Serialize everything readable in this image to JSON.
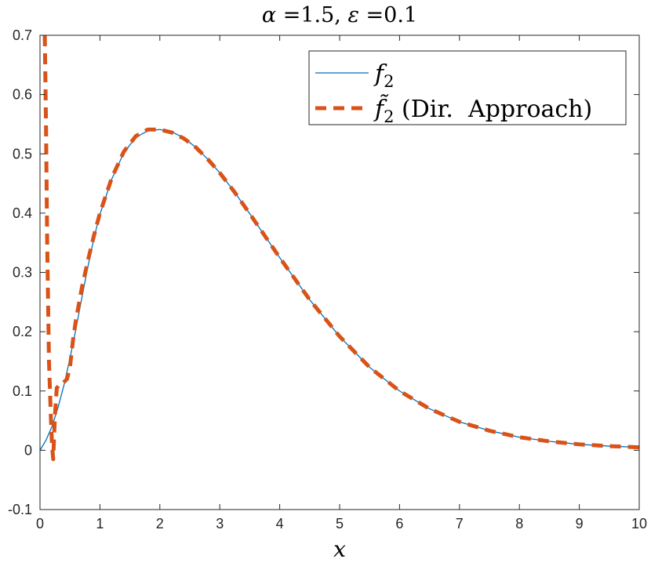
{
  "chart_data": {
    "type": "line",
    "title": "α =1.5, ε =0.1",
    "title_parts": {
      "alpha": "α",
      "alpha_val": " =1.5, ",
      "eps": "ε",
      "eps_val": " =0.1"
    },
    "xlabel": "x",
    "ylabel": "",
    "xlim": [
      0,
      10
    ],
    "ylim": [
      -0.1,
      0.7
    ],
    "xticks": [
      "0",
      "1",
      "2",
      "3",
      "4",
      "5",
      "6",
      "7",
      "8",
      "9",
      "10"
    ],
    "yticks": [
      "-0.1",
      "0",
      "0.1",
      "0.2",
      "0.3",
      "0.4",
      "0.5",
      "0.6",
      "0.7"
    ],
    "grid": false,
    "legend_position": "top-right",
    "series": [
      {
        "name": "f2",
        "legend_base": "f",
        "legend_sub": "2",
        "legend_suffix": "",
        "style": "solid",
        "color": "#0072BD",
        "x": [
          0,
          0.1,
          0.2,
          0.3,
          0.4,
          0.5,
          0.6,
          0.7,
          0.8,
          0.9,
          1.0,
          1.2,
          1.4,
          1.6,
          1.8,
          2.0,
          2.2,
          2.4,
          2.6,
          2.8,
          3.0,
          3.25,
          3.5,
          3.75,
          4.0,
          4.5,
          5.0,
          5.5,
          6.0,
          6.5,
          7.0,
          7.5,
          8.0,
          8.5,
          9.0,
          9.5,
          10.0
        ],
        "y": [
          0,
          0.017,
          0.04,
          0.072,
          0.11,
          0.155,
          0.205,
          0.258,
          0.31,
          0.358,
          0.398,
          0.458,
          0.502,
          0.528,
          0.539,
          0.541,
          0.537,
          0.527,
          0.511,
          0.491,
          0.468,
          0.435,
          0.399,
          0.362,
          0.325,
          0.254,
          0.192,
          0.14,
          0.1,
          0.07,
          0.048,
          0.033,
          0.022,
          0.015,
          0.01,
          0.007,
          0.005
        ]
      },
      {
        "name": "f2 tilde (Dir. Approach)",
        "legend_base": "f̃",
        "legend_sub": "2",
        "legend_suffix": " (Dir.  Approach)",
        "style": "dashed",
        "color": "#D95319",
        "x": [
          0.08,
          0.1,
          0.12,
          0.15,
          0.18,
          0.2,
          0.22,
          0.25,
          0.28,
          0.32,
          0.36,
          0.4,
          0.45,
          0.5,
          0.55,
          0.6,
          0.7,
          0.8,
          0.9,
          1.0,
          1.2,
          1.4,
          1.6,
          1.8,
          2.0,
          2.2,
          2.4,
          2.6,
          2.8,
          3.0,
          3.25,
          3.5,
          3.75,
          4.0,
          4.5,
          5.0,
          5.5,
          6.0,
          6.5,
          7.0,
          7.5,
          8.0,
          8.5,
          9.0,
          9.5,
          10.0
        ],
        "y": [
          0.7,
          0.55,
          0.35,
          0.15,
          0.06,
          0.01,
          -0.015,
          0.06,
          0.105,
          0.11,
          0.11,
          0.115,
          0.12,
          0.14,
          0.185,
          0.22,
          0.275,
          0.32,
          0.362,
          0.4,
          0.46,
          0.504,
          0.53,
          0.541,
          0.541,
          0.536,
          0.526,
          0.511,
          0.491,
          0.468,
          0.435,
          0.399,
          0.362,
          0.325,
          0.254,
          0.192,
          0.14,
          0.1,
          0.07,
          0.048,
          0.033,
          0.022,
          0.015,
          0.01,
          0.007,
          0.005
        ]
      }
    ]
  }
}
